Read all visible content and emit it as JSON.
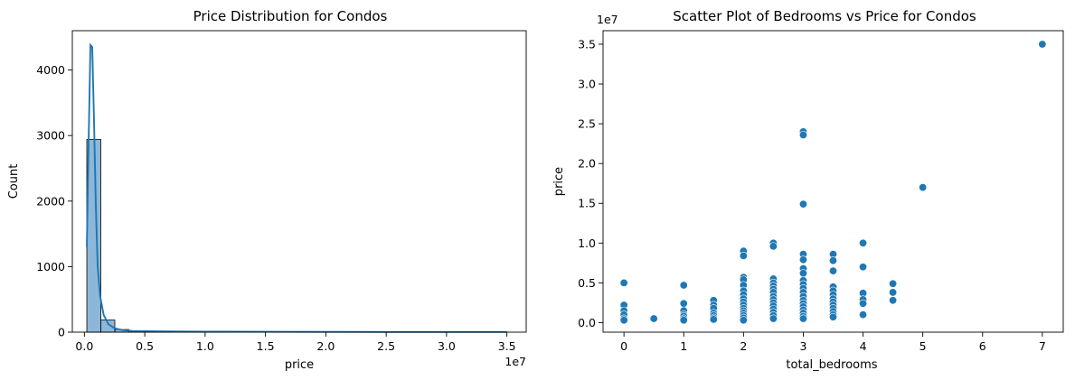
{
  "chart_data": [
    {
      "type": "bar",
      "subtype": "histogram-with-kde",
      "title": "Price Distribution for Condos",
      "xlabel": "price",
      "ylabel": "Count",
      "x_offset_label": "1e7",
      "xlim": [
        -1000000,
        36600000
      ],
      "ylim": [
        0,
        4600
      ],
      "xticks": [
        0,
        0.5,
        1.0,
        1.5,
        2.0,
        2.5,
        3.0,
        3.5
      ],
      "xtick_labels": [
        "0.0",
        "0.5",
        "1.0",
        "1.5",
        "2.0",
        "2.5",
        "3.0",
        "3.5"
      ],
      "yticks": [
        0,
        1000,
        2000,
        3000,
        4000
      ],
      "ytick_labels": [
        "0",
        "1000",
        "2000",
        "3000",
        "4000"
      ],
      "bin_width": 1160000,
      "bins_start": 200000,
      "values": [
        2940,
        185,
        40,
        18,
        12,
        8,
        6,
        5,
        4,
        3,
        3,
        2,
        2,
        2,
        1,
        1,
        1,
        1,
        1,
        1,
        1,
        1,
        1,
        1,
        1,
        1,
        1,
        1,
        1,
        1
      ],
      "kde": {
        "x": [
          200000,
          350000,
          500000,
          650000,
          800000,
          950000,
          1100000,
          1300000,
          1600000,
          2000000,
          2500000,
          3200000,
          4000000,
          6000000,
          10000000,
          15000000,
          20000000,
          25000000,
          30000000,
          35000000
        ],
        "y": [
          1300,
          2900,
          4380,
          4350,
          3200,
          1900,
          1000,
          550,
          260,
          120,
          60,
          30,
          18,
          12,
          8,
          6,
          4,
          3,
          2,
          2
        ]
      },
      "color": "#1f77b4",
      "bar_fill": "#8db7d8"
    },
    {
      "type": "scatter",
      "title": "Scatter Plot of Bedrooms vs Price for Condos",
      "xlabel": "total_bedrooms",
      "ylabel": "price",
      "y_offset_label": "1e7",
      "xlim": [
        -0.35,
        7.35
      ],
      "ylim": [
        -1200000,
        36700000
      ],
      "xticks": [
        0,
        1,
        2,
        3,
        4,
        5,
        6,
        7
      ],
      "xtick_labels": [
        "0",
        "1",
        "2",
        "3",
        "4",
        "5",
        "6",
        "7"
      ],
      "yticks": [
        0,
        5000000,
        10000000,
        15000000,
        20000000,
        25000000,
        30000000,
        35000000
      ],
      "ytick_labels": [
        "0.0",
        "0.5",
        "1.0",
        "1.5",
        "2.0",
        "2.5",
        "3.0",
        "3.5"
      ],
      "color": "#1f77b4",
      "points": [
        [
          0,
          5000000
        ],
        [
          0,
          2200000
        ],
        [
          0,
          1500000
        ],
        [
          0,
          1000000
        ],
        [
          0,
          500000
        ],
        [
          0,
          300000
        ],
        [
          0.5,
          500000
        ],
        [
          1,
          4700000
        ],
        [
          1,
          2400000
        ],
        [
          1,
          1500000
        ],
        [
          1,
          1000000
        ],
        [
          1,
          800000
        ],
        [
          1,
          500000
        ],
        [
          1,
          300000
        ],
        [
          1.5,
          2800000
        ],
        [
          1.5,
          2200000
        ],
        [
          1.5,
          1800000
        ],
        [
          1.5,
          1200000
        ],
        [
          1.5,
          900000
        ],
        [
          1.5,
          600000
        ],
        [
          1.5,
          400000
        ],
        [
          2,
          9000000
        ],
        [
          2,
          8400000
        ],
        [
          2,
          5700000
        ],
        [
          2,
          5400000
        ],
        [
          2,
          4700000
        ],
        [
          2,
          4000000
        ],
        [
          2,
          3500000
        ],
        [
          2,
          3000000
        ],
        [
          2,
          2600000
        ],
        [
          2,
          2200000
        ],
        [
          2,
          1800000
        ],
        [
          2,
          1500000
        ],
        [
          2,
          1200000
        ],
        [
          2,
          900000
        ],
        [
          2,
          600000
        ],
        [
          2,
          300000
        ],
        [
          2.5,
          10000000
        ],
        [
          2.5,
          9600000
        ],
        [
          2.5,
          5500000
        ],
        [
          2.5,
          5000000
        ],
        [
          2.5,
          4600000
        ],
        [
          2.5,
          4200000
        ],
        [
          2.5,
          3800000
        ],
        [
          2.5,
          3300000
        ],
        [
          2.5,
          2900000
        ],
        [
          2.5,
          2500000
        ],
        [
          2.5,
          2100000
        ],
        [
          2.5,
          1700000
        ],
        [
          2.5,
          1300000
        ],
        [
          2.5,
          900000
        ],
        [
          2.5,
          500000
        ],
        [
          3,
          24000000
        ],
        [
          3,
          23600000
        ],
        [
          3,
          14900000
        ],
        [
          3,
          8600000
        ],
        [
          3,
          7900000
        ],
        [
          3,
          6800000
        ],
        [
          3,
          6200000
        ],
        [
          3,
          5300000
        ],
        [
          3,
          4800000
        ],
        [
          3,
          4300000
        ],
        [
          3,
          3800000
        ],
        [
          3,
          3300000
        ],
        [
          3,
          2800000
        ],
        [
          3,
          2400000
        ],
        [
          3,
          2000000
        ],
        [
          3,
          1600000
        ],
        [
          3,
          1200000
        ],
        [
          3,
          800000
        ],
        [
          3,
          500000
        ],
        [
          3.5,
          8600000
        ],
        [
          3.5,
          7800000
        ],
        [
          3.5,
          6500000
        ],
        [
          3.5,
          4500000
        ],
        [
          3.5,
          4000000
        ],
        [
          3.5,
          3500000
        ],
        [
          3.5,
          3000000
        ],
        [
          3.5,
          2600000
        ],
        [
          3.5,
          2200000
        ],
        [
          3.5,
          1800000
        ],
        [
          3.5,
          1400000
        ],
        [
          3.5,
          1000000
        ],
        [
          3.5,
          700000
        ],
        [
          4,
          10000000
        ],
        [
          4,
          7000000
        ],
        [
          4,
          3700000
        ],
        [
          4,
          2900000
        ],
        [
          4,
          2400000
        ],
        [
          4,
          1000000
        ],
        [
          4.5,
          4900000
        ],
        [
          4.5,
          3800000
        ],
        [
          4.5,
          2800000
        ],
        [
          5,
          17000000
        ],
        [
          7,
          35000000
        ]
      ]
    }
  ]
}
